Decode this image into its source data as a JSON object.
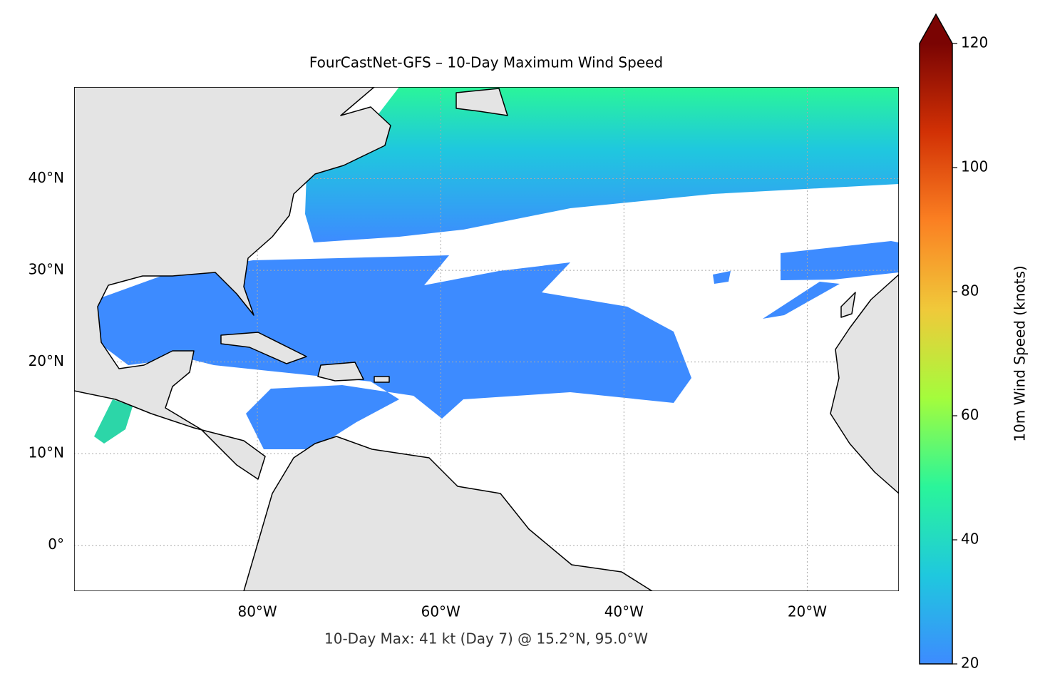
{
  "title": "FourCastNet-GFS – 10-Day Maximum Wind Speed",
  "annotation": "10-Day Max: 41 kt (Day 7) @ 15.2°N, 95.0°W",
  "map": {
    "xlim": [
      -100,
      -10
    ],
    "ylim": [
      -5,
      50
    ],
    "xticks": [
      {
        "value": -80,
        "label": "80°W"
      },
      {
        "value": -60,
        "label": "60°W"
      },
      {
        "value": -40,
        "label": "40°W"
      },
      {
        "value": -20,
        "label": "20°W"
      }
    ],
    "yticks": [
      {
        "value": 0,
        "label": "0°"
      },
      {
        "value": 10,
        "label": "10°N"
      },
      {
        "value": 20,
        "label": "20°N"
      },
      {
        "value": 30,
        "label": "30°N"
      },
      {
        "value": 40,
        "label": "40°N"
      }
    ],
    "grid": true
  },
  "colorbar": {
    "label": "10m Wind Speed (knots)",
    "lim": [
      20,
      120
    ],
    "ticks": [
      20,
      40,
      60,
      80,
      100,
      120
    ],
    "colors": [
      "#3d8bff",
      "#1fc8de",
      "#2af59a",
      "#a4fc3c",
      "#f0c93a",
      "#fb8022",
      "#d23105",
      "#7a0403"
    ],
    "extend": "max"
  }
}
